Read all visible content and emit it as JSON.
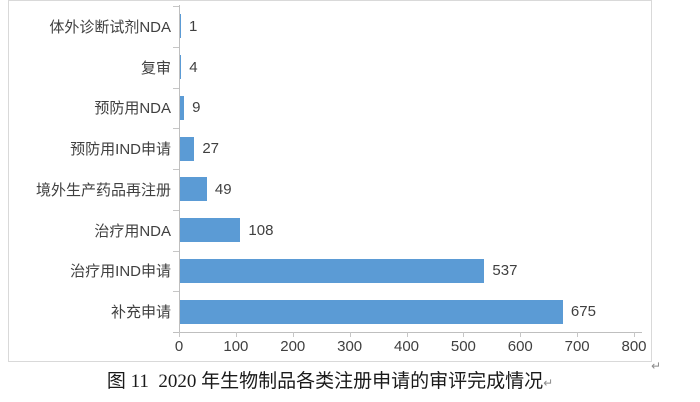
{
  "figure": {
    "caption": "图 11  2020 年生物制品各类注册申请的审评完成情况",
    "return_mark": "↵"
  },
  "chart_data": {
    "type": "bar",
    "orientation": "horizontal",
    "title": "",
    "xlabel": "",
    "ylabel": "",
    "categories": [
      "体外诊断试剂NDA",
      "复审",
      "预防用NDA",
      "预防用IND申请",
      "境外生产药品再注册",
      "治疗用NDA",
      "治疗用IND申请",
      "补充申请"
    ],
    "values": [
      1,
      4,
      9,
      27,
      49,
      108,
      537,
      675
    ],
    "xlim": [
      0,
      800
    ],
    "xticks": [
      0,
      100,
      200,
      300,
      400,
      500,
      600,
      700,
      800
    ],
    "grid": false,
    "legend": false,
    "data_labels": true,
    "bar_color": "#5b9bd5",
    "axis_color": "#bfbfbf",
    "text_color": "#404040"
  }
}
